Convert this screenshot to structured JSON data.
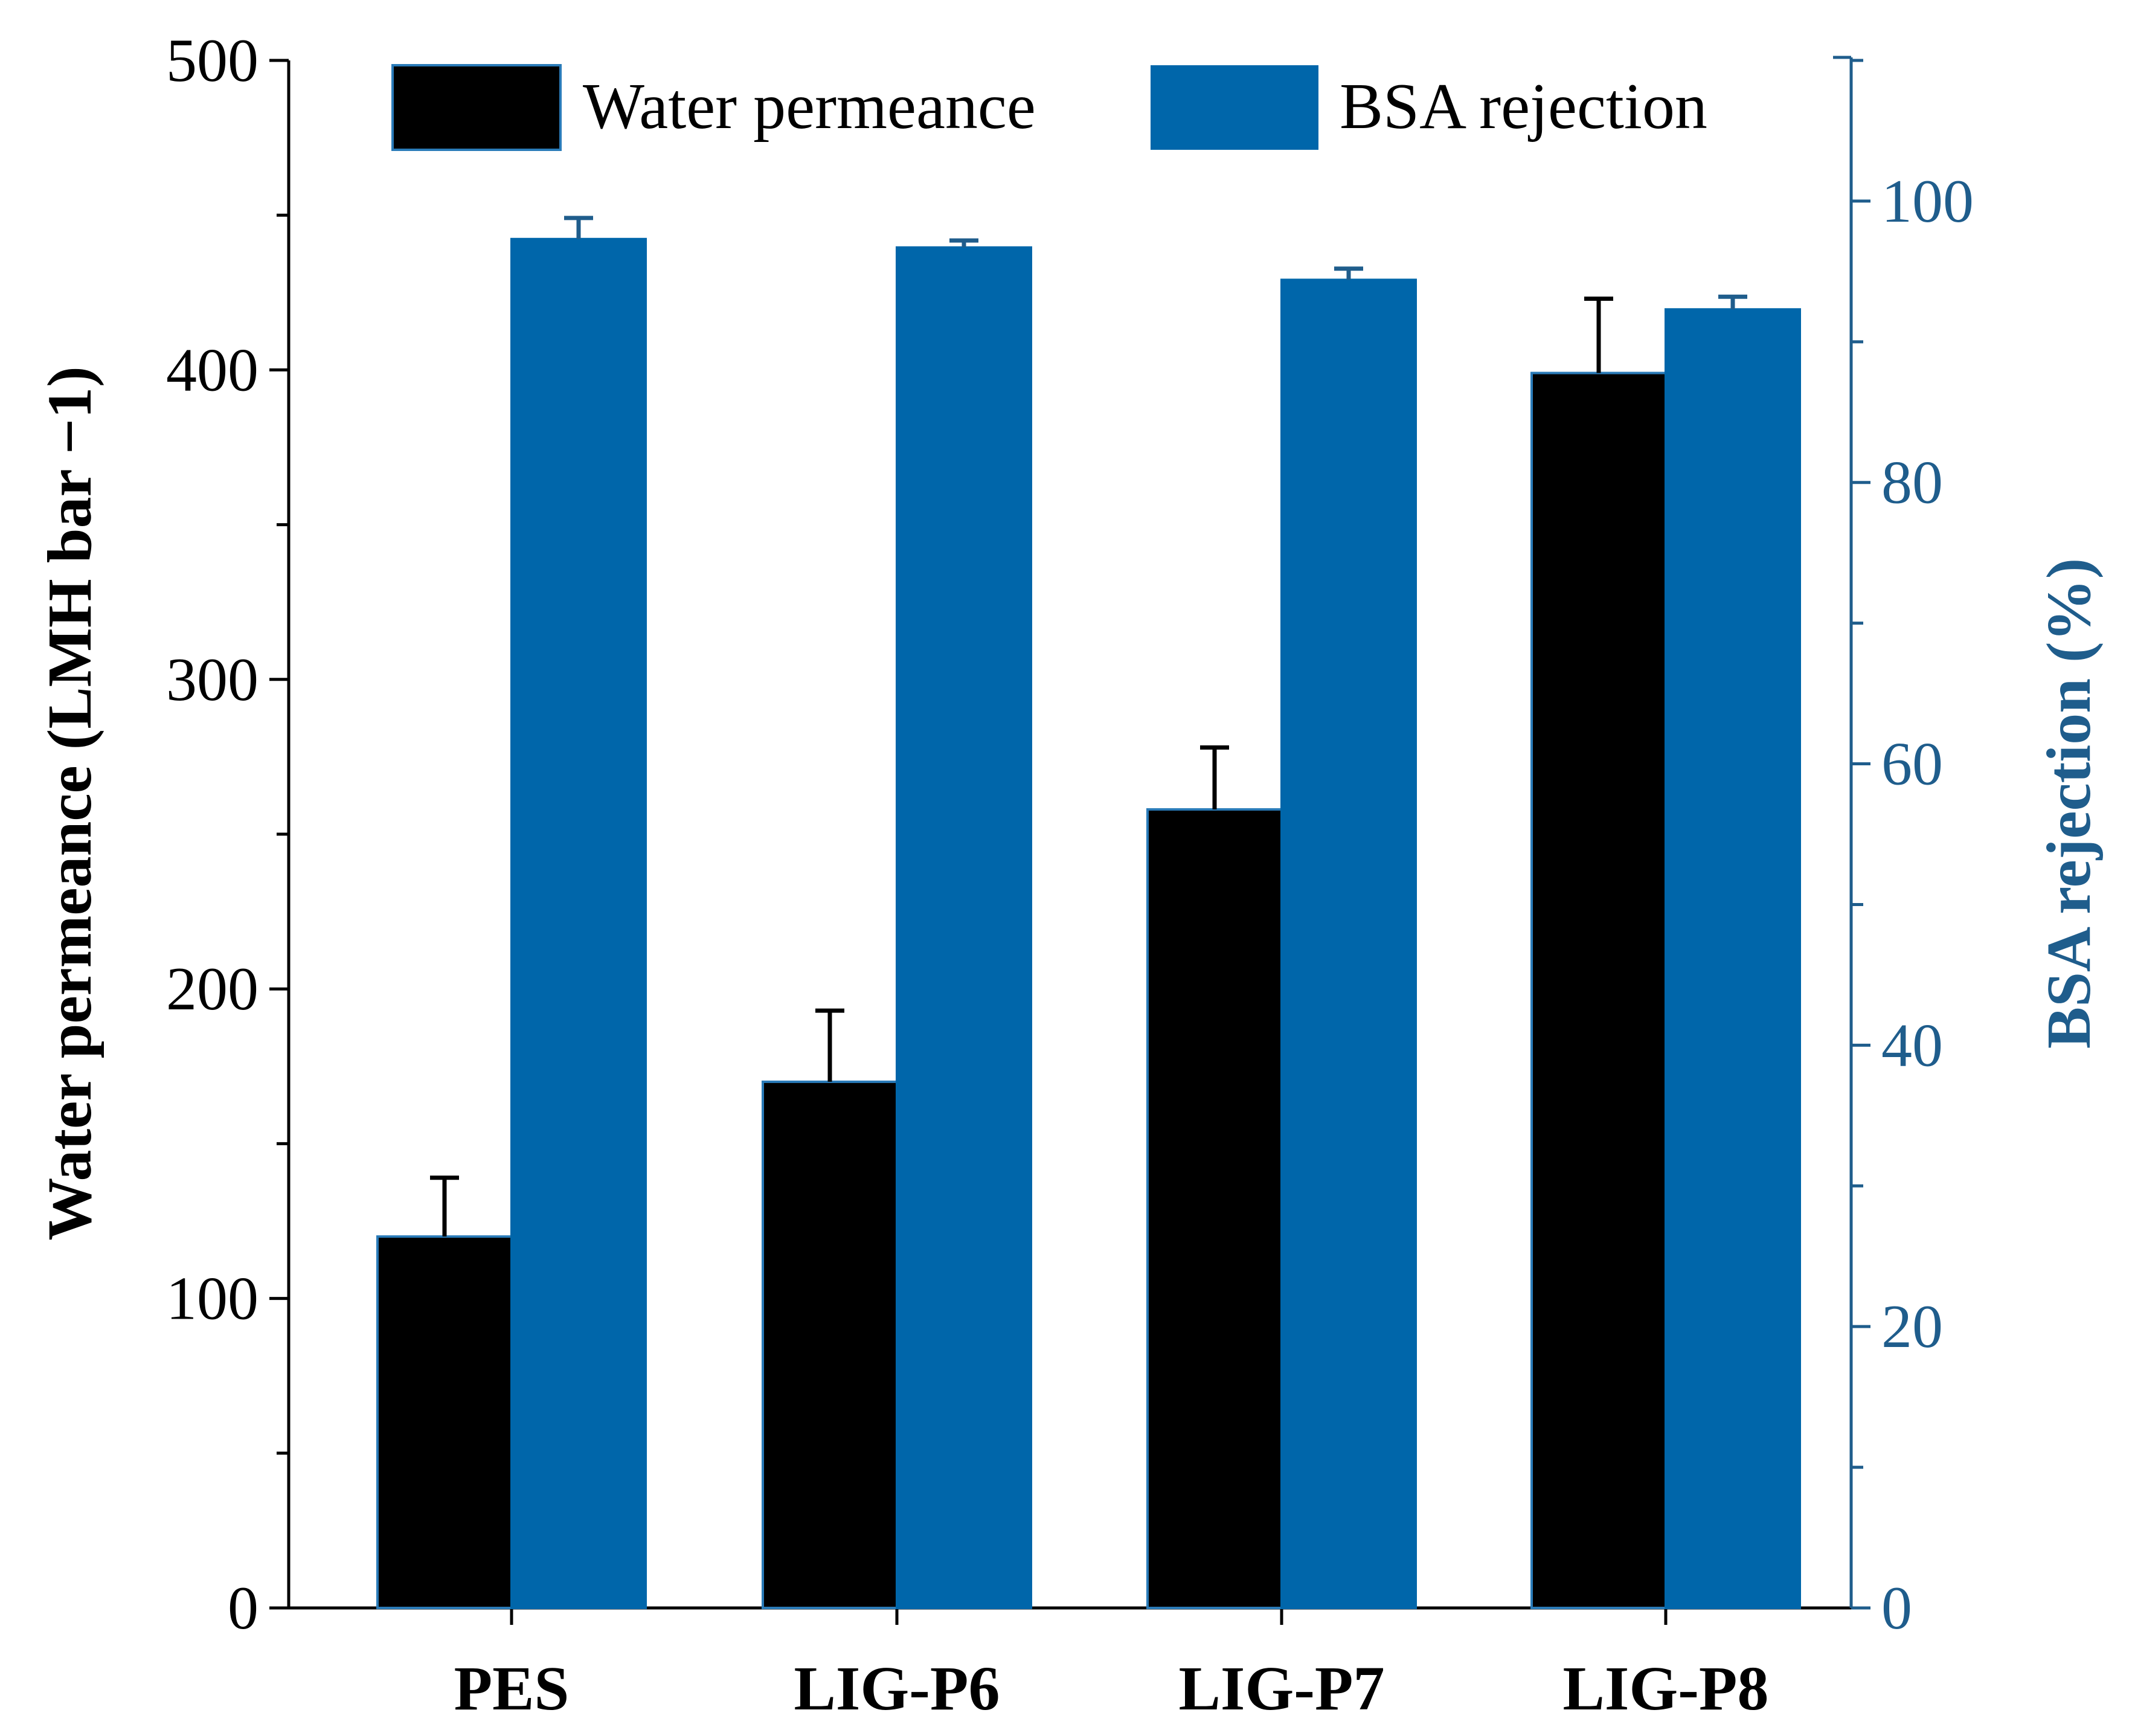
{
  "chart_data": {
    "type": "bar",
    "categories": [
      "PES",
      "LIG-P6",
      "LIG-P7",
      "LIG-P8"
    ],
    "series": [
      {
        "name": "Water permeance",
        "axis": "left",
        "values": [
          120,
          170,
          258,
          399
        ],
        "errors": [
          19,
          23,
          20,
          24
        ],
        "color": "#000000"
      },
      {
        "name": "BSA rejection",
        "axis": "right",
        "values": [
          97.3,
          96.7,
          94.4,
          92.3
        ],
        "errors": [
          1.5,
          0.5,
          0.8,
          0.9
        ],
        "color": "#0066AA"
      }
    ],
    "left_axis": {
      "label": "Water permeance (LMH bar −1)",
      "ylim": [
        0,
        500
      ],
      "ticks": [
        "0",
        "100",
        "200",
        "300",
        "400",
        "500"
      ]
    },
    "right_axis": {
      "label": "BSA rejection (%)",
      "ylim": [
        0,
        110
      ],
      "ticks": [
        "0",
        "20",
        "40",
        "60",
        "80",
        "100"
      ],
      "color": "#1F5D8C"
    },
    "legend": {
      "position": "top",
      "entries": [
        "Water permeance",
        "BSA rejection"
      ]
    },
    "grid": false
  }
}
